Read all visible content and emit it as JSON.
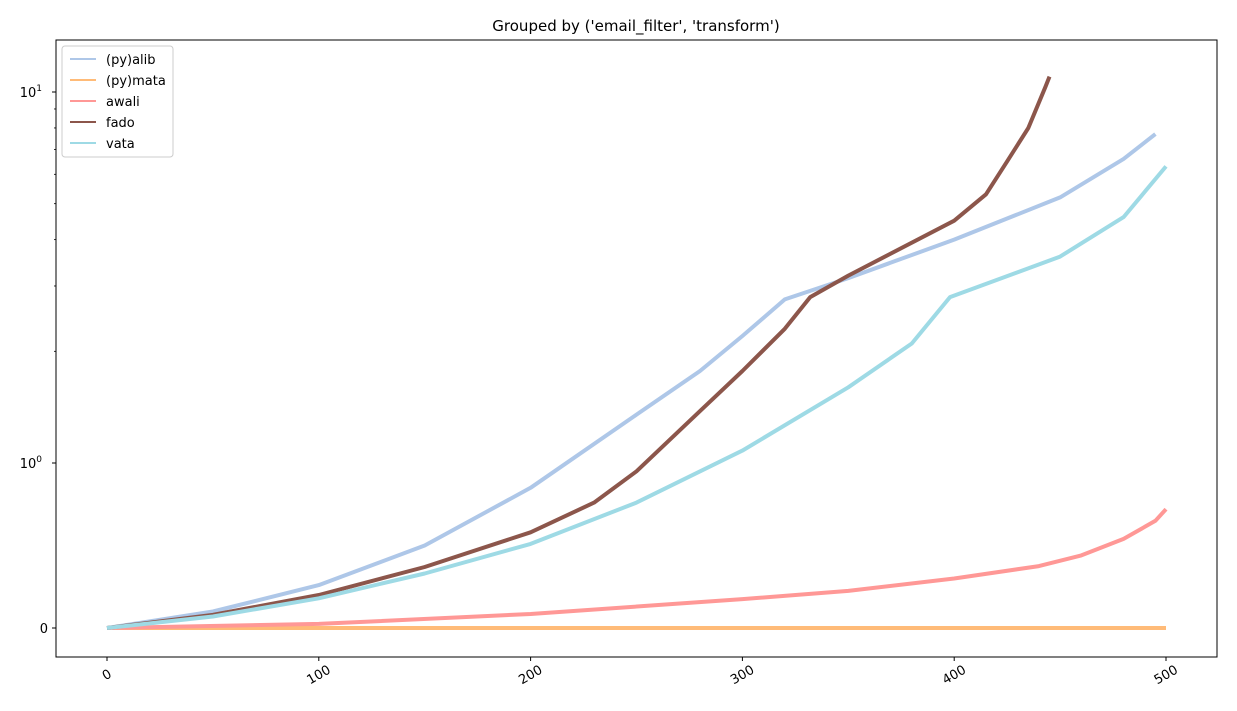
{
  "chart_data": {
    "type": "line",
    "title": "Grouped by ('email_filter', 'transform')",
    "xlabel": "",
    "ylabel": "",
    "xlim": [
      -25,
      525
    ],
    "x_ticks": [
      0,
      100,
      200,
      300,
      400,
      500
    ],
    "yscale": "symlog",
    "y_ticks": [
      {
        "value": 0,
        "label": "0"
      },
      {
        "value": 1,
        "label": "10",
        "exp": "0"
      },
      {
        "value": 10,
        "label": "10",
        "exp": "1"
      }
    ],
    "legend_position": "top-left",
    "grid": false,
    "series": [
      {
        "name": "(py)alib",
        "color": "#aec7e8",
        "points": [
          [
            0,
            0
          ],
          [
            50,
            0.1
          ],
          [
            100,
            0.26
          ],
          [
            150,
            0.5
          ],
          [
            200,
            0.85
          ],
          [
            250,
            1.35
          ],
          [
            280,
            1.77
          ],
          [
            300,
            2.2
          ],
          [
            320,
            2.76
          ],
          [
            350,
            3.15
          ],
          [
            400,
            4.0
          ],
          [
            450,
            5.2
          ],
          [
            480,
            6.6
          ],
          [
            495,
            7.7
          ]
        ]
      },
      {
        "name": "(py)mata",
        "color": "#ffbb78",
        "points": [
          [
            0,
            0
          ],
          [
            100,
            0
          ],
          [
            200,
            0
          ],
          [
            300,
            0
          ],
          [
            400,
            0
          ],
          [
            500,
            0
          ]
        ]
      },
      {
        "name": "awali",
        "color": "#ff9896",
        "points": [
          [
            0,
            0
          ],
          [
            100,
            0.025
          ],
          [
            200,
            0.085
          ],
          [
            300,
            0.175
          ],
          [
            350,
            0.225
          ],
          [
            400,
            0.3
          ],
          [
            440,
            0.375
          ],
          [
            460,
            0.44
          ],
          [
            480,
            0.54
          ],
          [
            495,
            0.65
          ],
          [
            500,
            0.72
          ]
        ]
      },
      {
        "name": "fado",
        "color": "#8c564b",
        "points": [
          [
            0,
            0
          ],
          [
            50,
            0.08
          ],
          [
            100,
            0.2
          ],
          [
            150,
            0.37
          ],
          [
            200,
            0.58
          ],
          [
            230,
            0.76
          ],
          [
            250,
            0.95
          ],
          [
            280,
            1.38
          ],
          [
            300,
            1.77
          ],
          [
            320,
            2.3
          ],
          [
            332,
            2.8
          ],
          [
            350,
            3.2
          ],
          [
            400,
            4.5
          ],
          [
            415,
            5.3
          ],
          [
            425,
            6.5
          ],
          [
            435,
            8.0
          ],
          [
            443,
            10.3
          ],
          [
            445,
            11.0
          ]
        ]
      },
      {
        "name": "vata",
        "color": "#9edae5",
        "points": [
          [
            0,
            0
          ],
          [
            50,
            0.07
          ],
          [
            100,
            0.18
          ],
          [
            150,
            0.33
          ],
          [
            200,
            0.51
          ],
          [
            250,
            0.76
          ],
          [
            300,
            1.08
          ],
          [
            350,
            1.6
          ],
          [
            380,
            2.1
          ],
          [
            398,
            2.8
          ],
          [
            450,
            3.6
          ],
          [
            480,
            4.6
          ],
          [
            500,
            6.3
          ]
        ]
      }
    ]
  }
}
